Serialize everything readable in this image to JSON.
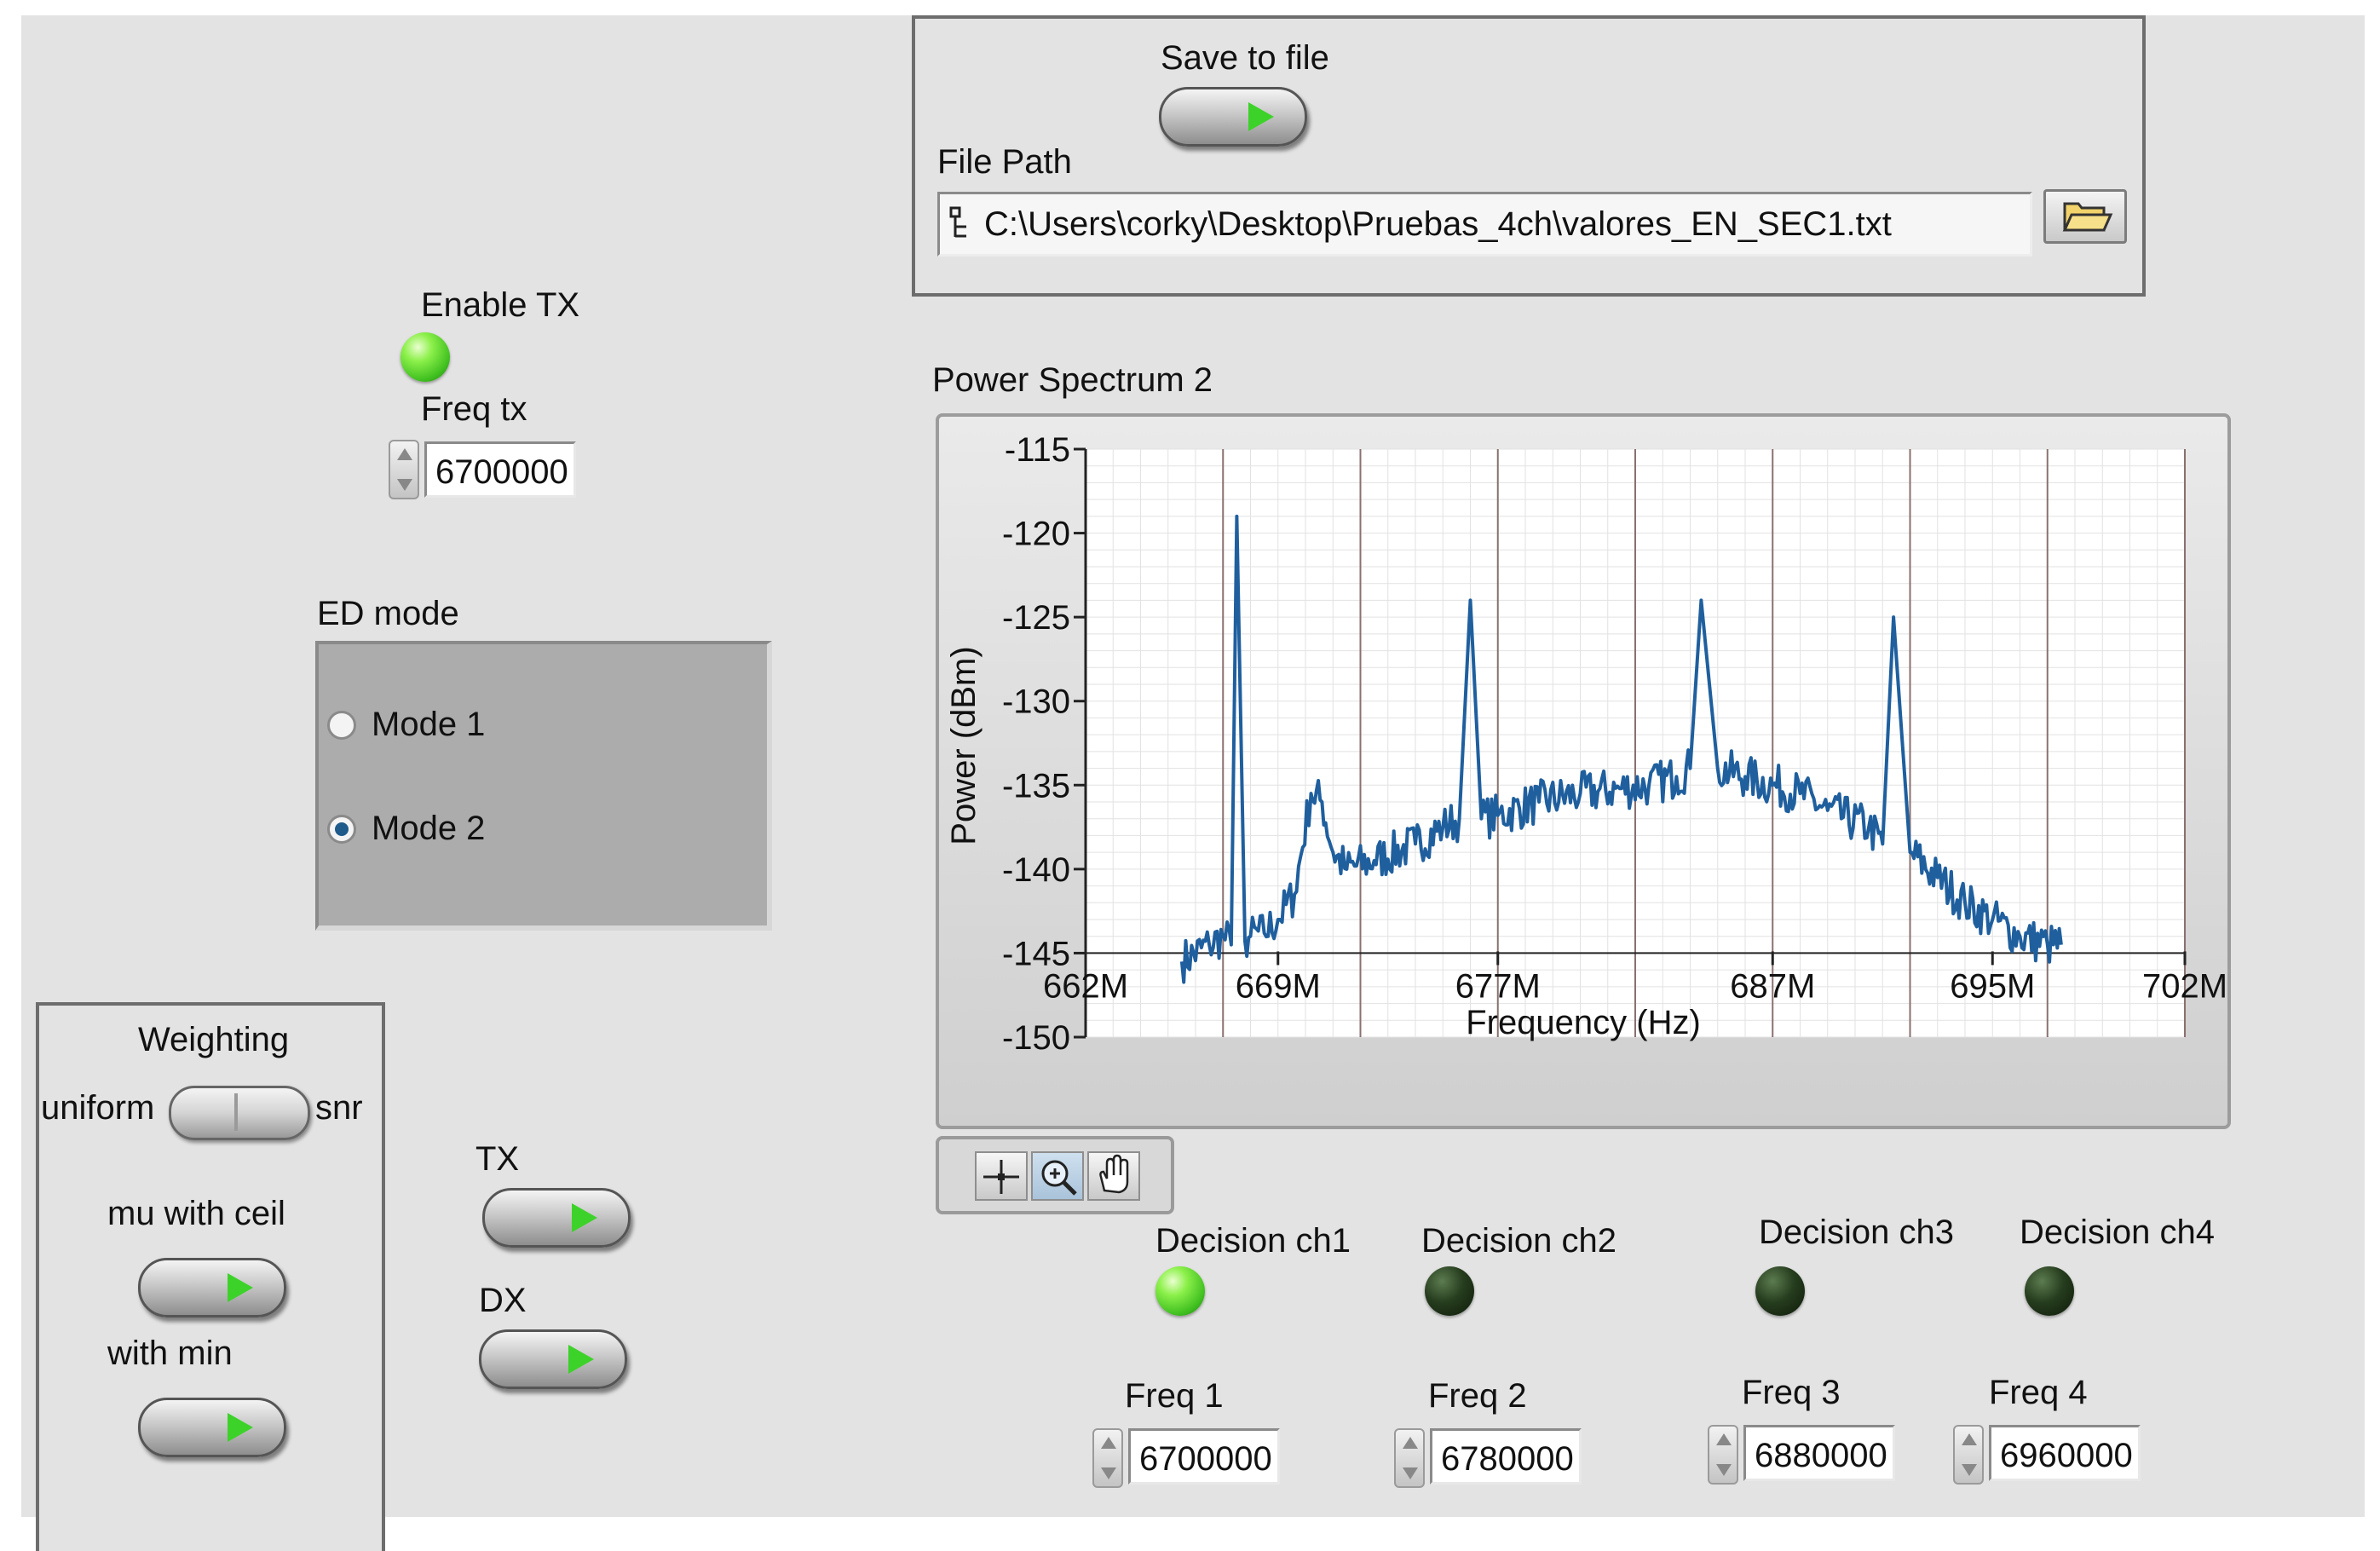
{
  "save": {
    "label": "Save to file"
  },
  "file": {
    "label": "File Path",
    "path": "C:\\Users\\corky\\Desktop\\Pruebas_4ch\\valores_EN_SEC1.txt"
  },
  "tx": {
    "enable_label": "Enable TX",
    "enable_on": true,
    "freq_label": "Freq tx",
    "freq_value": "6700000"
  },
  "ed_mode": {
    "label": "ED mode",
    "options": [
      "Mode 1",
      "Mode 2"
    ],
    "selected": "Mode 2"
  },
  "weighting": {
    "title": "Weighting",
    "left_label": "uniform",
    "right_label": "snr",
    "mu_label": "mu with ceil",
    "min_label": "with min"
  },
  "buttons": {
    "tx_label": "TX",
    "dx_label": "DX"
  },
  "decisions": [
    {
      "label": "Decision ch1",
      "on": true
    },
    {
      "label": "Decision ch2",
      "on": false
    },
    {
      "label": "Decision ch3",
      "on": false
    },
    {
      "label": "Decision ch4",
      "on": false
    }
  ],
  "freqs": [
    {
      "label": "Freq 1",
      "value": "6700000"
    },
    {
      "label": "Freq 2",
      "value": "6780000"
    },
    {
      "label": "Freq 3",
      "value": "6880000"
    },
    {
      "label": "Freq 4",
      "value": "6960000"
    }
  ],
  "colors": {
    "trace": "#1f5f9e",
    "led_on": "#5fe03a",
    "led_off": "#1c2e16",
    "panel": "#e3e3e3",
    "group": "#acacac"
  },
  "palette_icons": [
    "cursor-crosshair-icon",
    "zoom-icon",
    "pan-hand-icon"
  ],
  "chart_data": {
    "type": "line",
    "title": "Power Spectrum 2",
    "xlabel": "Frequency (Hz)",
    "ylabel": "Power (dBm)",
    "x_tick_labels": [
      "662M",
      "669M",
      "677M",
      "687M",
      "695M",
      "702M"
    ],
    "y_tick_labels": [
      "-115",
      "-120",
      "-125",
      "-130",
      "-135",
      "-140",
      "-145",
      "-150"
    ],
    "ylim": [
      -150,
      -115
    ],
    "grid": true,
    "series": [
      {
        "x": [
          665.5,
          666.5,
          667.0,
          667.3,
          667.5,
          667.8,
          668.0,
          668.5,
          669.0,
          669.6,
          670.2,
          670.6,
          671.0,
          671.5,
          672.5,
          674.0,
          675.0,
          675.6,
          676.0,
          676.4,
          677.0,
          678.5,
          680.0,
          681.5,
          682.5,
          683.5,
          684.0,
          684.4,
          685.0,
          686.0,
          687.0,
          688.0,
          689.0,
          690.5,
          691.0,
          691.4,
          692.0,
          693.0,
          694.0,
          695.0,
          696.0,
          697.0,
          697.5
        ],
        "y": [
          -145.5,
          -144.5,
          -144.0,
          -144.5,
          -119.0,
          -144.3,
          -144.0,
          -143.8,
          -143.0,
          -141.5,
          -135.5,
          -136.0,
          -139.0,
          -140.0,
          -139.5,
          -138.5,
          -137.5,
          -137.0,
          -124.0,
          -137.0,
          -136.8,
          -136.0,
          -135.5,
          -135.2,
          -135.0,
          -134.5,
          -134.0,
          -124.0,
          -134.0,
          -134.5,
          -135.0,
          -135.5,
          -136.5,
          -137.5,
          -138.5,
          -125.0,
          -139.0,
          -140.5,
          -142.0,
          -143.0,
          -144.0,
          -144.5,
          -144.5
        ]
      }
    ]
  }
}
